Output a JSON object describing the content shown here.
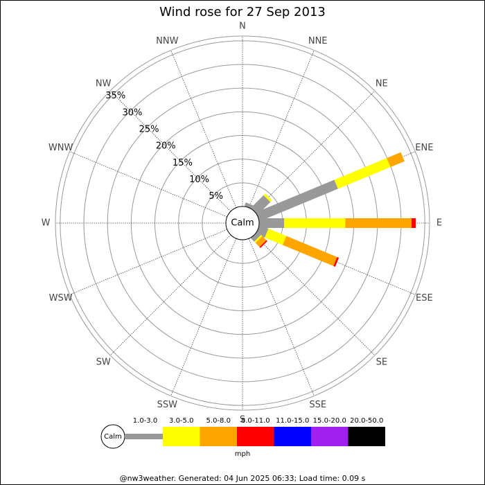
{
  "chart_data": {
    "type": "windrose",
    "title": "Wind rose for 27 Sep 2013",
    "categories": [
      "N",
      "NNE",
      "NE",
      "ENE",
      "E",
      "ESE",
      "SE",
      "SSE",
      "S",
      "SSW",
      "SW",
      "WSW",
      "W",
      "WNW",
      "NW",
      "NNW"
    ],
    "center_label": "Calm",
    "ylim": [
      0,
      36
    ],
    "yticks": [
      {
        "value": 5,
        "label": "5%"
      },
      {
        "value": 10,
        "label": "10%"
      },
      {
        "value": 15,
        "label": "15%"
      },
      {
        "value": 20,
        "label": "20%"
      },
      {
        "value": 25,
        "label": "25%"
      },
      {
        "value": 30,
        "label": "30%"
      },
      {
        "value": 35,
        "label": "35%"
      }
    ],
    "series": [
      {
        "name": "1.0-3.0",
        "color": "#999999",
        "values": [
          0,
          0.8,
          3.8,
          17.9,
          5.3,
          2.0,
          1.0,
          0,
          0,
          0,
          0,
          0,
          0,
          0,
          0,
          0
        ]
      },
      {
        "name": "3.0-5.0",
        "color": "#ffff00",
        "values": [
          0,
          0,
          0.5,
          12.0,
          12.9,
          4.1,
          0.4,
          0,
          0,
          0,
          0,
          0,
          0,
          0,
          0,
          0
        ]
      },
      {
        "name": "5.0-8.0",
        "color": "#ffa500",
        "values": [
          0,
          0,
          0,
          3.2,
          14.0,
          11.6,
          1.2,
          0,
          0,
          0,
          0,
          0,
          0,
          0,
          0,
          0
        ]
      },
      {
        "name": "8.0-11.0",
        "color": "#ff0000",
        "values": [
          0,
          0,
          0,
          0,
          0.9,
          0.4,
          0.3,
          0,
          0,
          0,
          0,
          0,
          0,
          0,
          0,
          0
        ]
      },
      {
        "name": "11.0-15.0",
        "color": "#0000ff",
        "values": [
          0,
          0,
          0,
          0,
          0,
          0,
          0,
          0,
          0,
          0,
          0,
          0,
          0,
          0,
          0,
          0
        ]
      },
      {
        "name": "15.0-20.0",
        "color": "#a020f0",
        "values": [
          0,
          0,
          0,
          0,
          0,
          0,
          0,
          0,
          0,
          0,
          0,
          0,
          0,
          0,
          0,
          0
        ]
      },
      {
        "name": "20.0-50.0",
        "color": "#000000",
        "values": [
          0,
          0,
          0,
          0,
          0,
          0,
          0,
          0,
          0,
          0,
          0,
          0,
          0,
          0,
          0,
          0
        ]
      }
    ],
    "unit": "mph",
    "footer": "@nw3weather. Generated: 04 Jun 2025 06:33; Load time: 0.09 s"
  }
}
